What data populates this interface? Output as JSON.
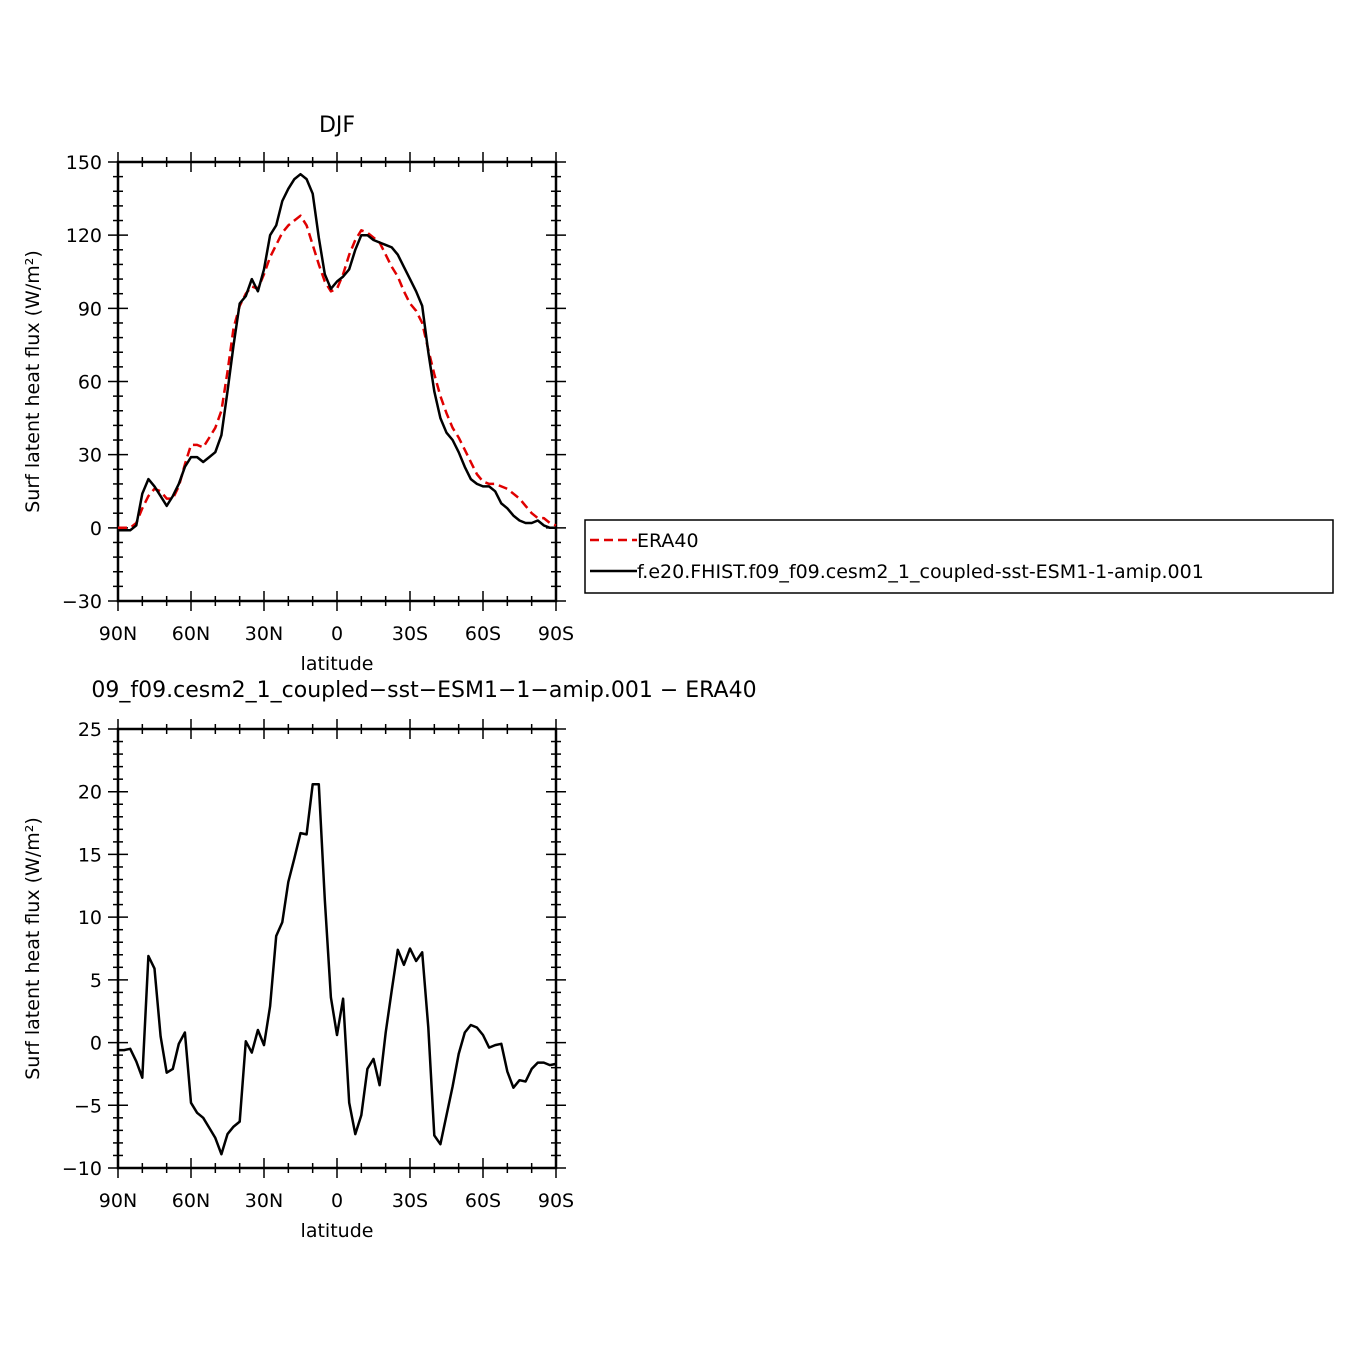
{
  "chart_data": [
    {
      "type": "line",
      "title": "DJF",
      "xlabel": "latitude",
      "ylabel": "Surf latent heat flux (W/m²)",
      "ylim": [
        -30,
        150
      ],
      "yticks": [
        -30,
        0,
        30,
        60,
        90,
        120,
        150
      ],
      "xlim": [
        90,
        -90
      ],
      "xticks": [
        90,
        60,
        30,
        0,
        -30,
        -60,
        -90
      ],
      "xtick_labels": [
        "90N",
        "60N",
        "30N",
        "0",
        "30S",
        "60S",
        "90S"
      ],
      "legend": {
        "position": "right"
      },
      "series": [
        {
          "name": "ERA40",
          "color": "#e00000",
          "dash": "dashed",
          "x": [
            90,
            87.5,
            85,
            82.5,
            80,
            77.5,
            75,
            72.5,
            70,
            67.5,
            65,
            62.5,
            60,
            57.5,
            55,
            52.5,
            50,
            47.5,
            45,
            42.5,
            40,
            37.5,
            35,
            32.5,
            30,
            27.5,
            25,
            22.5,
            20,
            17.5,
            15,
            12.5,
            10,
            7.5,
            5,
            2.5,
            0,
            -2.5,
            -5,
            -7.5,
            -10,
            -12.5,
            -15,
            -17.5,
            -20,
            -22.5,
            -25,
            -27.5,
            -30,
            -32.5,
            -35,
            -37.5,
            -40,
            -42.5,
            -45,
            -47.5,
            -50,
            -52.5,
            -55,
            -57.5,
            -60,
            -62.5,
            -65,
            -67.5,
            -70,
            -72.5,
            -75,
            -77.5,
            -80,
            -82.5,
            -85,
            -87.5,
            -90
          ],
          "y": [
            0,
            0,
            0,
            2,
            8,
            13,
            16,
            15,
            12,
            12,
            17,
            26,
            34,
            34,
            33,
            37,
            41,
            48,
            64,
            82,
            91,
            96,
            99,
            98,
            104,
            111,
            116,
            121,
            124,
            126,
            128,
            124,
            116,
            108,
            101,
            97,
            98,
            104,
            112,
            118,
            122,
            121,
            119,
            117,
            112,
            107,
            103,
            97,
            92,
            89,
            84,
            73,
            63,
            54,
            47,
            41,
            37,
            32,
            27,
            22,
            19,
            18,
            18,
            17,
            16,
            14,
            12,
            9,
            6,
            4,
            4,
            2,
            1
          ]
        },
        {
          "name": "f.e20.FHIST.f09_f09.cesm2_1_coupled-sst-ESM1-1-amip.001",
          "color": "#000000",
          "dash": "solid",
          "x": [
            90,
            87.5,
            85,
            82.5,
            80,
            77.5,
            75,
            72.5,
            70,
            67.5,
            65,
            62.5,
            60,
            57.5,
            55,
            52.5,
            50,
            47.5,
            45,
            42.5,
            40,
            37.5,
            35,
            32.5,
            30,
            27.5,
            25,
            22.5,
            20,
            17.5,
            15,
            12.5,
            10,
            7.5,
            5,
            2.5,
            0,
            -2.5,
            -5,
            -7.5,
            -10,
            -12.5,
            -15,
            -17.5,
            -20,
            -22.5,
            -25,
            -27.5,
            -30,
            -32.5,
            -35,
            -37.5,
            -40,
            -42.5,
            -45,
            -47.5,
            -50,
            -52.5,
            -55,
            -57.5,
            -60,
            -62.5,
            -65,
            -67.5,
            -70,
            -72.5,
            -75,
            -77.5,
            -80,
            -82.5,
            -85,
            -87.5,
            -90
          ],
          "y": [
            -1,
            -1,
            -1,
            1,
            14,
            20,
            17,
            13,
            9,
            13,
            18,
            25,
            29,
            29,
            27,
            29,
            31,
            38,
            56,
            75,
            92,
            95,
            102,
            97,
            106,
            120,
            124,
            134,
            139,
            143,
            145,
            143,
            137,
            119,
            104,
            98,
            101,
            103,
            106,
            114,
            120,
            120,
            118,
            117,
            116,
            115,
            112,
            107,
            102,
            97,
            91,
            72,
            56,
            45,
            39,
            36,
            31,
            25,
            20,
            18,
            17,
            17,
            15,
            10,
            8,
            5,
            3,
            2,
            2,
            3,
            1,
            0,
            0
          ]
        }
      ]
    },
    {
      "type": "line",
      "title": "09_f09.cesm2_1_coupled−sst−ESM1−1−amip.001 − ERA40",
      "xlabel": "latitude",
      "ylabel": "Surf latent heat flux (W/m²)",
      "ylim": [
        -10,
        25
      ],
      "yticks": [
        -10,
        -5,
        0,
        5,
        10,
        15,
        20,
        25
      ],
      "xlim": [
        90,
        -90
      ],
      "xticks": [
        90,
        60,
        30,
        0,
        -30,
        -60,
        -90
      ],
      "xtick_labels": [
        "90N",
        "60N",
        "30N",
        "0",
        "30S",
        "60S",
        "90S"
      ],
      "series": [
        {
          "color": "#000000",
          "dash": "solid",
          "x": [
            90,
            87.5,
            85,
            82.5,
            80,
            77.5,
            75,
            72.5,
            70,
            67.5,
            65,
            62.5,
            60,
            57.5,
            55,
            52.5,
            50,
            47.5,
            45,
            42.5,
            40,
            37.5,
            35,
            32.5,
            30,
            27.5,
            25,
            22.5,
            20,
            17.5,
            15,
            12.5,
            10,
            7.5,
            5,
            2.5,
            0,
            -2.5,
            -5,
            -7.5,
            -10,
            -12.5,
            -15,
            -17.5,
            -20,
            -22.5,
            -25,
            -27.5,
            -30,
            -32.5,
            -35,
            -37.5,
            -40,
            -42.5,
            -45,
            -47.5,
            -50,
            -52.5,
            -55,
            -57.5,
            -60,
            -62.5,
            -65,
            -67.5,
            -70,
            -72.5,
            -75,
            -77.5,
            -80,
            -82.5,
            -85,
            -87.5,
            -90
          ],
          "y": [
            -0.6,
            -0.6,
            -0.5,
            -1.5,
            -2.8,
            6.9,
            5.9,
            0.5,
            -2.4,
            -2.1,
            -0.1,
            0.8,
            -4.8,
            -5.6,
            -6.0,
            -6.8,
            -7.6,
            -8.9,
            -7.3,
            -6.7,
            -6.3,
            0.1,
            -0.8,
            1.0,
            -0.2,
            2.9,
            8.5,
            9.6,
            12.8,
            14.7,
            16.7,
            16.6,
            20.6,
            20.6,
            11.4,
            3.6,
            0.6,
            3.5,
            -4.8,
            -7.3,
            -5.8,
            -2.1,
            -1.3,
            -3.4,
            0.8,
            4.2,
            7.4,
            6.2,
            7.5,
            6.5,
            7.2,
            1.2,
            -7.4,
            -8.1,
            -5.8,
            -3.5,
            -0.9,
            0.8,
            1.4,
            1.2,
            0.6,
            -0.4,
            -0.2,
            -0.1,
            -2.3,
            -3.6,
            -3.0,
            -3.1,
            -2.1,
            -1.6,
            -1.6,
            -1.8,
            -1.7
          ]
        }
      ]
    }
  ]
}
